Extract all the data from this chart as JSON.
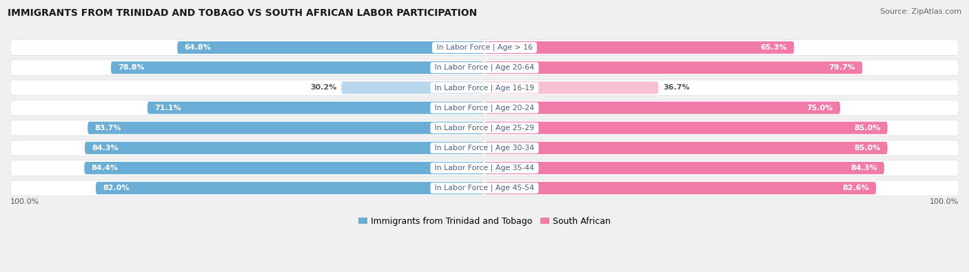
{
  "title": "IMMIGRANTS FROM TRINIDAD AND TOBAGO VS SOUTH AFRICAN LABOR PARTICIPATION",
  "source": "Source: ZipAtlas.com",
  "categories": [
    "In Labor Force | Age > 16",
    "In Labor Force | Age 20-64",
    "In Labor Force | Age 16-19",
    "In Labor Force | Age 20-24",
    "In Labor Force | Age 25-29",
    "In Labor Force | Age 30-34",
    "In Labor Force | Age 35-44",
    "In Labor Force | Age 45-54"
  ],
  "trinidad_values": [
    64.8,
    78.8,
    30.2,
    71.1,
    83.7,
    84.3,
    84.4,
    82.0
  ],
  "south_african_values": [
    65.3,
    79.7,
    36.7,
    75.0,
    85.0,
    85.0,
    84.3,
    82.6
  ],
  "trinidad_color": "#6aaed6",
  "trinidad_color_light": "#b8d7ec",
  "south_african_color": "#f07aa8",
  "south_african_color_light": "#f8c0d4",
  "background_color": "#f0f0f0",
  "row_bg_color": "#ffffff",
  "row_border_color": "#dddddd",
  "legend_label_trinidad": "Immigrants from Trinidad and Tobago",
  "legend_label_south_african": "South African",
  "axis_label_left": "100.0%",
  "axis_label_right": "100.0%",
  "max_val": 100.0,
  "label_color_dark": "#555555",
  "label_color_white": "#ffffff",
  "center_label_color": "#4a6080"
}
